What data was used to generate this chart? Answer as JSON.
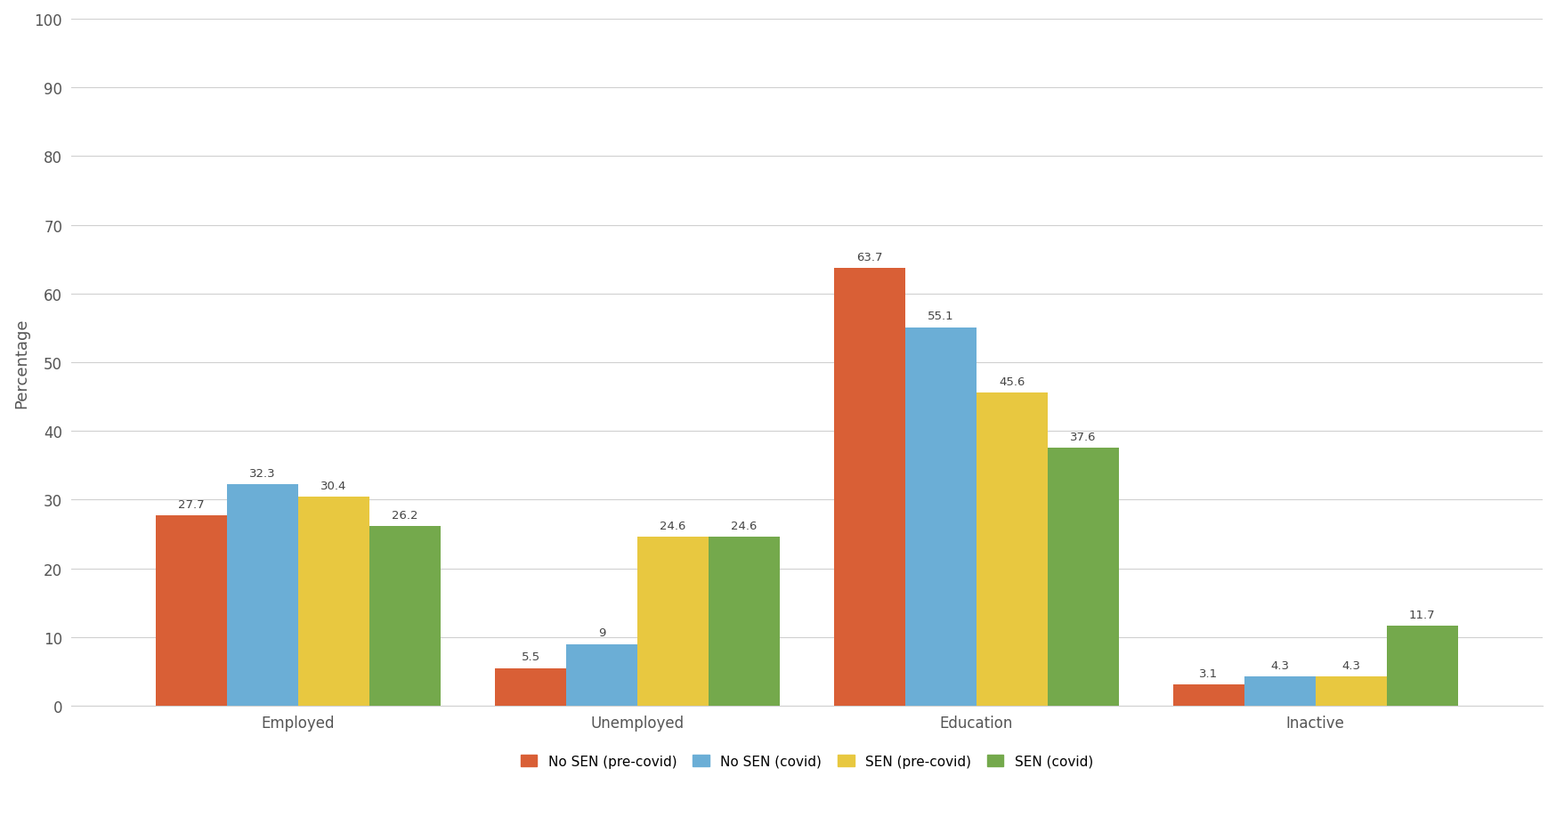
{
  "categories": [
    "Employed",
    "Unemployed",
    "Education",
    "Inactive"
  ],
  "series": [
    {
      "label": "No SEN (pre-covid)",
      "color": "#D95F36",
      "values": [
        27.7,
        5.5,
        63.7,
        3.1
      ]
    },
    {
      "label": "No SEN (covid)",
      "color": "#6BAED6",
      "values": [
        32.3,
        9.0,
        55.1,
        4.3
      ]
    },
    {
      "label": "SEN (pre-covid)",
      "color": "#E8C840",
      "values": [
        30.4,
        24.6,
        45.6,
        4.3
      ]
    },
    {
      "label": "SEN (covid)",
      "color": "#74A94C",
      "values": [
        26.2,
        24.6,
        37.6,
        11.7
      ]
    }
  ],
  "ylabel": "Percentage",
  "ylim": [
    0,
    100
  ],
  "yticks": [
    0,
    10,
    20,
    30,
    40,
    50,
    60,
    70,
    80,
    90,
    100
  ],
  "background_color": "#ffffff",
  "grid_color": "#d0d0d0",
  "bar_width": 0.21,
  "tick_fontsize": 12,
  "ylabel_fontsize": 13,
  "legend_fontsize": 11,
  "value_label_fontsize": 9.5,
  "cat_label_color": "#555555",
  "value_label_color": "#444444"
}
